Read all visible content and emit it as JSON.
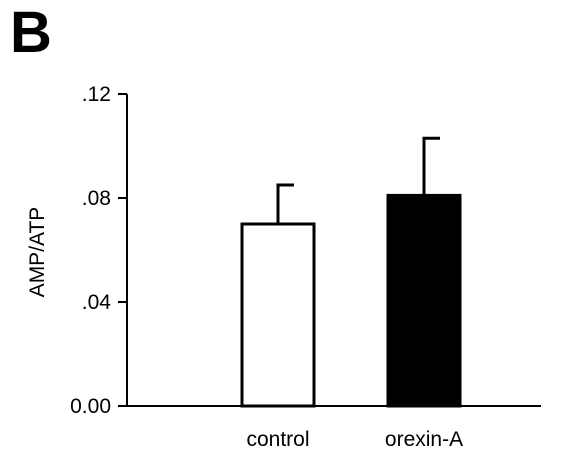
{
  "panel_label": "B",
  "chart_data": {
    "type": "bar",
    "title": "",
    "xlabel": "",
    "ylabel": "AMP/ATP",
    "categories": [
      "control",
      "orexin-A"
    ],
    "values": [
      0.07,
      0.081
    ],
    "error_up": [
      0.015,
      0.022
    ],
    "bar_colors": [
      "#ffffff",
      "#000000"
    ],
    "edge_color": "#000000",
    "ylim": [
      0,
      0.12
    ],
    "yticks": [
      0,
      0.04,
      0.08,
      0.12
    ],
    "ytick_labels": [
      "0.00",
      ".04",
      ".08",
      ".12"
    ],
    "grid": false,
    "legend": "none"
  }
}
